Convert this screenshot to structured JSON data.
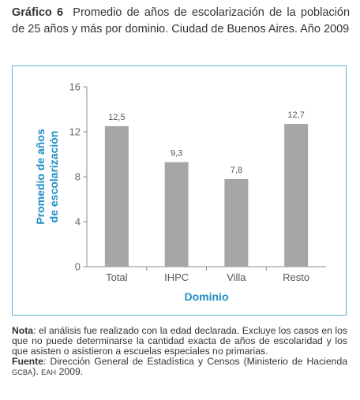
{
  "header": {
    "label": "Gráfico 6",
    "title": "Promedio de años de escolarización de la población de 25 años y más por dominio. Ciudad de Buenos Aires.  Año 2009"
  },
  "chart_data": {
    "type": "bar",
    "categories": [
      "Total",
      "IHPC",
      "Villa",
      "Resto"
    ],
    "values": [
      12.5,
      9.3,
      7.8,
      12.7
    ],
    "value_labels": [
      "12,5",
      "9,3",
      "7,8",
      "12,7"
    ],
    "ylim": [
      0,
      16
    ],
    "yticks": [
      "0",
      "4",
      "8",
      "12",
      "16"
    ],
    "ylabel_line1": "Promedio de años",
    "ylabel_line2": "de escolarización",
    "xlabel": "Dominio",
    "bar_color": "#a6a6a6",
    "axis_label_color": "#1f8fc4",
    "frame_color": "#5fb0cf"
  },
  "notes": {
    "note_label": "Nota",
    "note_text": ":  el análisis fue realizado con la edad declarada. Excluye los casos en los que no puede determinarse la cantidad exacta de años de escolaridad y los que asisten o asistieron a escuelas especiales no primarias.",
    "source_label": "Fuente",
    "source_text_1": ": Dirección General de Estadística y Censos (Ministerio de Hacienda ",
    "source_sc_1": "GCBA",
    "source_text_2": "). ",
    "source_sc_2": "EAH",
    "source_text_3": " 2009."
  }
}
